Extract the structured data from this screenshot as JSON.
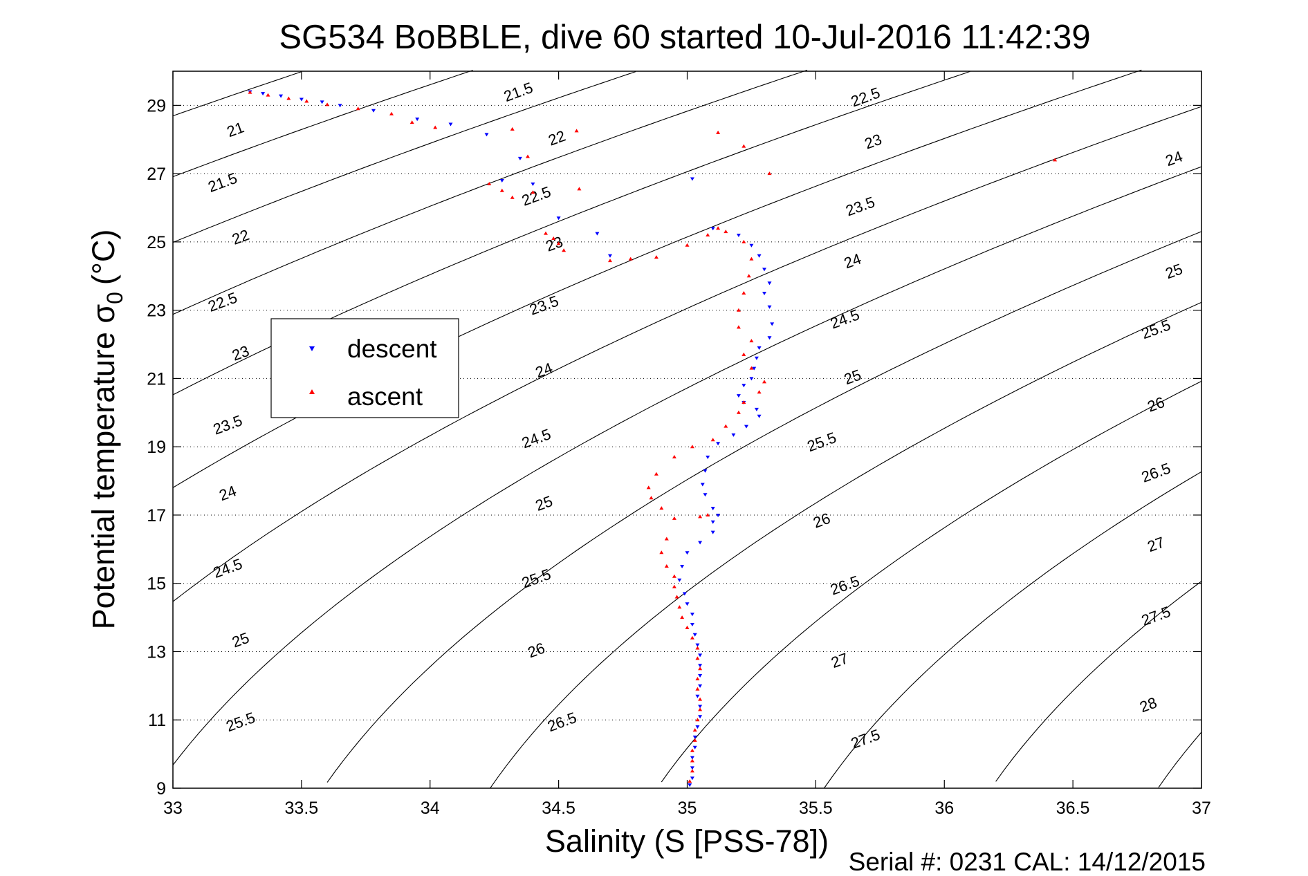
{
  "chart_data": {
    "type": "scatter",
    "title": "SG534 BoBBLE, dive 60 started 10-Jul-2016 11:42:39",
    "xlabel": "Salinity (S [PSS-78])",
    "ylabel_main": "Potential temperature σ",
    "ylabel_sub": "0",
    "ylabel_unit": "(°C)",
    "footer": "Serial #: 0231  CAL: 14/12/2015",
    "xlim": [
      33,
      37
    ],
    "ylim": [
      9,
      30
    ],
    "xticks": [
      33,
      33.5,
      34,
      34.5,
      35,
      35.5,
      36,
      36.5,
      37
    ],
    "xtick_labels": [
      "33",
      "33.5",
      "34",
      "34.5",
      "35",
      "35.5",
      "36",
      "36.5",
      "37"
    ],
    "yticks": [
      9,
      11,
      13,
      15,
      17,
      19,
      21,
      23,
      25,
      27,
      29
    ],
    "ytick_labels": [
      "9",
      "11",
      "13",
      "15",
      "17",
      "19",
      "21",
      "23",
      "25",
      "27",
      "29"
    ],
    "grid": "dotted",
    "legend_position": "left, upper-middle",
    "colors": {
      "descent": "#0000ff",
      "ascent": "#ff0000",
      "contour": "#000000"
    },
    "density_contours": {
      "levels": [
        21,
        21.5,
        22,
        22.5,
        23,
        23.5,
        24,
        24.5,
        25,
        25.5,
        26,
        26.5,
        27,
        27.5,
        28
      ],
      "labels": [
        {
          "text": "21",
          "s": 33.25,
          "t": 28.15
        },
        {
          "text": "21.5",
          "s": 34.35,
          "t": 29.25
        },
        {
          "text": "21.5",
          "s": 33.2,
          "t": 26.6
        },
        {
          "text": "22",
          "s": 34.5,
          "t": 27.9
        },
        {
          "text": "22",
          "s": 33.27,
          "t": 25
        },
        {
          "text": "22.5",
          "s": 34.42,
          "t": 26.2
        },
        {
          "text": "22.5",
          "s": 35.7,
          "t": 29.1
        },
        {
          "text": "22.5",
          "s": 33.2,
          "t": 23.1
        },
        {
          "text": "23",
          "s": 34.49,
          "t": 24.8
        },
        {
          "text": "23",
          "s": 35.73,
          "t": 27.8
        },
        {
          "text": "23",
          "s": 33.27,
          "t": 21.6
        },
        {
          "text": "23.5",
          "s": 34.45,
          "t": 23.0
        },
        {
          "text": "23.5",
          "s": 35.68,
          "t": 25.9
        },
        {
          "text": "23.5",
          "s": 33.22,
          "t": 19.5
        },
        {
          "text": "24",
          "s": 34.45,
          "t": 21.1
        },
        {
          "text": "24",
          "s": 35.65,
          "t": 24.3
        },
        {
          "text": "24",
          "s": 36.9,
          "t": 27.3
        },
        {
          "text": "24",
          "s": 33.22,
          "t": 17.5
        },
        {
          "text": "24.5",
          "s": 34.42,
          "t": 19.1
        },
        {
          "text": "24.5",
          "s": 35.62,
          "t": 22.6
        },
        {
          "text": "24.5",
          "s": 33.22,
          "t": 15.3
        },
        {
          "text": "25",
          "s": 34.45,
          "t": 17.2
        },
        {
          "text": "25",
          "s": 35.65,
          "t": 20.9
        },
        {
          "text": "25",
          "s": 36.9,
          "t": 24.0
        },
        {
          "text": "25",
          "s": 33.27,
          "t": 13.2
        },
        {
          "text": "25.5",
          "s": 34.42,
          "t": 15.0
        },
        {
          "text": "25.5",
          "s": 35.53,
          "t": 19.0
        },
        {
          "text": "25.5",
          "s": 36.83,
          "t": 22.3
        },
        {
          "text": "25.5",
          "s": 33.27,
          "t": 10.8
        },
        {
          "text": "26",
          "s": 34.42,
          "t": 12.9
        },
        {
          "text": "26",
          "s": 35.53,
          "t": 16.7
        },
        {
          "text": "26",
          "s": 36.83,
          "t": 20.1
        },
        {
          "text": "26.5",
          "s": 34.52,
          "t": 10.8
        },
        {
          "text": "26.5",
          "s": 35.62,
          "t": 14.8
        },
        {
          "text": "26.5",
          "s": 36.83,
          "t": 18.1
        },
        {
          "text": "27",
          "s": 35.6,
          "t": 12.6
        },
        {
          "text": "27",
          "s": 36.83,
          "t": 16.0
        },
        {
          "text": "27.5",
          "s": 35.7,
          "t": 10.3
        },
        {
          "text": "27.5",
          "s": 36.83,
          "t": 13.9
        },
        {
          "text": "28",
          "s": 36.8,
          "t": 11.3
        }
      ]
    },
    "series": [
      {
        "name": "descent",
        "marker": "down-triangle",
        "points": [
          [
            33.3,
            29.4
          ],
          [
            33.35,
            29.35
          ],
          [
            33.42,
            29.28
          ],
          [
            33.5,
            29.18
          ],
          [
            33.58,
            29.1
          ],
          [
            33.65,
            29.0
          ],
          [
            33.78,
            28.85
          ],
          [
            33.95,
            28.6
          ],
          [
            34.08,
            28.45
          ],
          [
            34.22,
            28.15
          ],
          [
            34.35,
            27.45
          ],
          [
            34.28,
            26.8
          ],
          [
            34.4,
            26.7
          ],
          [
            34.5,
            25.7
          ],
          [
            34.65,
            25.25
          ],
          [
            34.7,
            24.6
          ],
          [
            35.02,
            26.85
          ],
          [
            35.1,
            25.4
          ],
          [
            35.2,
            25.2
          ],
          [
            35.25,
            24.9
          ],
          [
            35.28,
            24.6
          ],
          [
            35.3,
            24.2
          ],
          [
            35.32,
            23.8
          ],
          [
            35.3,
            23.5
          ],
          [
            35.32,
            23.1
          ],
          [
            35.33,
            22.6
          ],
          [
            35.32,
            22.2
          ],
          [
            35.28,
            21.9
          ],
          [
            35.27,
            21.6
          ],
          [
            35.26,
            21.3
          ],
          [
            35.25,
            21.0
          ],
          [
            35.22,
            20.8
          ],
          [
            35.2,
            20.5
          ],
          [
            35.22,
            20.3
          ],
          [
            35.27,
            20.1
          ],
          [
            35.28,
            19.9
          ],
          [
            35.23,
            19.6
          ],
          [
            35.18,
            19.35
          ],
          [
            35.12,
            19.1
          ],
          [
            35.08,
            18.7
          ],
          [
            35.07,
            18.3
          ],
          [
            35.06,
            17.9
          ],
          [
            35.07,
            17.6
          ],
          [
            35.1,
            17.2
          ],
          [
            35.12,
            17.0
          ],
          [
            35.1,
            16.8
          ],
          [
            35.1,
            16.5
          ],
          [
            35.05,
            16.2
          ],
          [
            35.0,
            15.9
          ],
          [
            34.98,
            15.5
          ],
          [
            34.97,
            15.1
          ],
          [
            34.99,
            14.7
          ],
          [
            35.0,
            14.4
          ],
          [
            35.02,
            14.1
          ],
          [
            35.02,
            13.8
          ],
          [
            35.03,
            13.5
          ],
          [
            35.04,
            13.2
          ],
          [
            35.05,
            12.9
          ],
          [
            35.05,
            12.6
          ],
          [
            35.05,
            12.3
          ],
          [
            35.05,
            12.0
          ],
          [
            35.04,
            11.7
          ],
          [
            35.05,
            11.4
          ],
          [
            35.05,
            11.1
          ],
          [
            35.04,
            10.8
          ],
          [
            35.03,
            10.5
          ],
          [
            35.03,
            10.2
          ],
          [
            35.02,
            9.9
          ],
          [
            35.02,
            9.6
          ],
          [
            35.02,
            9.3
          ],
          [
            35.01,
            9.1
          ]
        ]
      },
      {
        "name": "ascent",
        "marker": "up-triangle",
        "points": [
          [
            33.3,
            29.38
          ],
          [
            33.37,
            29.3
          ],
          [
            33.45,
            29.2
          ],
          [
            33.52,
            29.12
          ],
          [
            33.6,
            29.02
          ],
          [
            33.72,
            28.9
          ],
          [
            33.85,
            28.75
          ],
          [
            33.93,
            28.5
          ],
          [
            34.02,
            28.35
          ],
          [
            34.32,
            28.3
          ],
          [
            34.57,
            28.25
          ],
          [
            34.38,
            27.5
          ],
          [
            34.23,
            26.7
          ],
          [
            34.28,
            26.5
          ],
          [
            34.32,
            26.3
          ],
          [
            34.4,
            26.45
          ],
          [
            34.58,
            26.55
          ],
          [
            34.45,
            25.25
          ],
          [
            34.48,
            25.1
          ],
          [
            34.5,
            24.95
          ],
          [
            34.52,
            24.75
          ],
          [
            34.7,
            24.45
          ],
          [
            34.78,
            24.5
          ],
          [
            34.88,
            24.55
          ],
          [
            35.0,
            24.9
          ],
          [
            35.08,
            25.2
          ],
          [
            35.12,
            25.4
          ],
          [
            35.15,
            25.3
          ],
          [
            35.22,
            25.0
          ],
          [
            35.25,
            24.5
          ],
          [
            35.24,
            24.0
          ],
          [
            35.22,
            23.5
          ],
          [
            35.2,
            23.0
          ],
          [
            35.2,
            22.5
          ],
          [
            35.25,
            22.1
          ],
          [
            35.22,
            21.7
          ],
          [
            35.25,
            21.3
          ],
          [
            35.3,
            20.9
          ],
          [
            35.28,
            20.6
          ],
          [
            35.22,
            20.3
          ],
          [
            35.2,
            20.0
          ],
          [
            35.15,
            19.6
          ],
          [
            35.1,
            19.2
          ],
          [
            35.02,
            19.0
          ],
          [
            34.95,
            18.7
          ],
          [
            34.88,
            18.2
          ],
          [
            34.85,
            17.8
          ],
          [
            34.86,
            17.5
          ],
          [
            34.9,
            17.2
          ],
          [
            34.95,
            16.9
          ],
          [
            35.05,
            16.95
          ],
          [
            35.08,
            17.0
          ],
          [
            34.92,
            16.3
          ],
          [
            34.9,
            15.9
          ],
          [
            34.92,
            15.5
          ],
          [
            34.95,
            15.2
          ],
          [
            34.95,
            14.9
          ],
          [
            34.96,
            14.6
          ],
          [
            34.97,
            14.3
          ],
          [
            34.98,
            14.0
          ],
          [
            35.0,
            13.7
          ],
          [
            35.02,
            13.4
          ],
          [
            35.04,
            13.1
          ],
          [
            35.04,
            12.8
          ],
          [
            35.05,
            12.5
          ],
          [
            35.04,
            12.2
          ],
          [
            35.04,
            11.9
          ],
          [
            35.05,
            11.6
          ],
          [
            35.05,
            11.3
          ],
          [
            35.04,
            11.0
          ],
          [
            35.03,
            10.7
          ],
          [
            35.03,
            10.4
          ],
          [
            35.02,
            10.1
          ],
          [
            35.02,
            9.8
          ],
          [
            35.02,
            9.5
          ],
          [
            35.01,
            9.2
          ],
          [
            35.12,
            28.2
          ],
          [
            35.22,
            27.8
          ],
          [
            35.32,
            27.0
          ],
          [
            36.43,
            27.4
          ]
        ]
      }
    ]
  }
}
